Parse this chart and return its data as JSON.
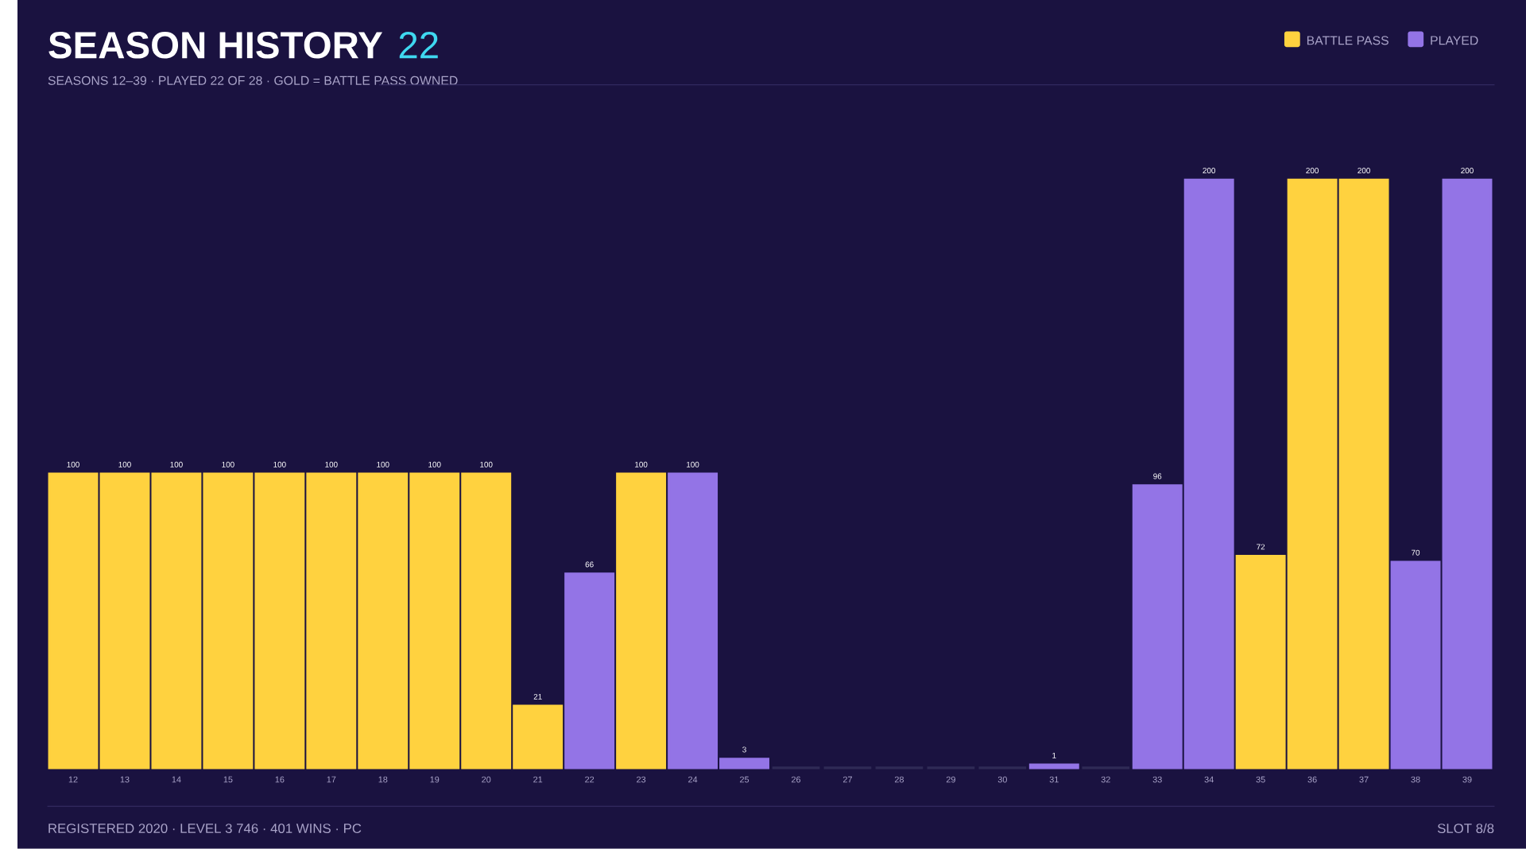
{
  "chart_data": {
    "type": "bar",
    "title": "SEASON HISTORY",
    "subtitle": "SEASONS 12–39 · PLAYED 22 OF 28 · GOLD = BATTLE PASS OWNED",
    "annotations": [
      "22",
      "REGISTERED 2020 · LEVEL 3 746 · 401 WINS · PC",
      "SLOT 8/8"
    ],
    "categories": [
      "12",
      "13",
      "14",
      "15",
      "16",
      "17",
      "18",
      "19",
      "20",
      "21",
      "22",
      "23",
      "24",
      "25",
      "26",
      "27",
      "28",
      "29",
      "30",
      "31",
      "32",
      "33",
      "34",
      "35",
      "36",
      "37",
      "38",
      "39"
    ],
    "series": [
      {
        "name": "BATTLE PASS",
        "color": "#ffd23f",
        "values": [
          100,
          100,
          100,
          100,
          100,
          100,
          100,
          100,
          100,
          21,
          null,
          100,
          null,
          null,
          null,
          null,
          null,
          null,
          null,
          null,
          null,
          null,
          null,
          72,
          200,
          200,
          null,
          null
        ],
        "value_labels": [
          "100",
          "100",
          "100",
          "100",
          "100",
          "100",
          "100",
          "100",
          "100",
          "21",
          null,
          "100",
          null,
          null,
          null,
          null,
          null,
          null,
          null,
          null,
          null,
          null,
          null,
          "72",
          "200",
          "200",
          null,
          null
        ]
      },
      {
        "name": "PLAYED",
        "color": "#9374e6",
        "values": [
          null,
          null,
          null,
          null,
          null,
          null,
          null,
          null,
          null,
          null,
          66,
          null,
          100,
          3,
          null,
          null,
          null,
          null,
          null,
          1,
          null,
          96,
          200,
          null,
          null,
          null,
          70,
          200
        ],
        "value_labels": [
          null,
          null,
          null,
          null,
          null,
          null,
          null,
          null,
          null,
          null,
          "66",
          null,
          "100",
          "3",
          null,
          null,
          null,
          null,
          null,
          "1",
          null,
          "96",
          "200",
          null,
          null,
          null,
          "70",
          "200"
        ]
      },
      {
        "color": "#2f2a55",
        "values": [
          null,
          null,
          null,
          null,
          null,
          null,
          null,
          null,
          null,
          null,
          null,
          null,
          null,
          null,
          0,
          0,
          0,
          0,
          0,
          null,
          0,
          null,
          null,
          null,
          null,
          null,
          null,
          null
        ]
      }
    ],
    "ylim": [
      0,
      200
    ],
    "tick_labels": "x",
    "legend": "top right"
  }
}
